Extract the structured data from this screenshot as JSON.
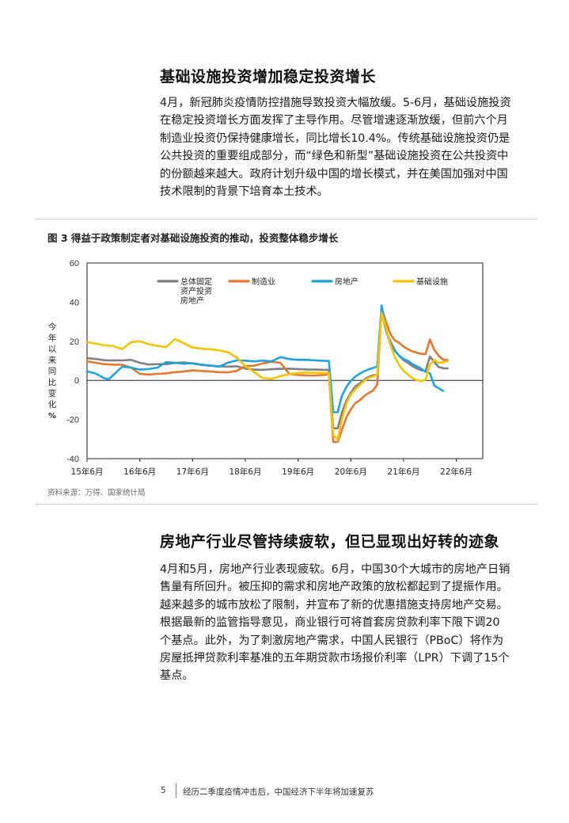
{
  "section1": {
    "heading": "基础设施投资增加稳定投资增长",
    "paragraph": [
      "4月，新冠肺炎疫情防控措施导致投资大幅放缓。5-6月，基础设施投资",
      "在稳定投资增长方面发挥了主导作用。尽管增速逐渐放缓，但前六个月",
      "制造业投资仍保持健康增长，同比增长10.4%。传统基础设施投资仍是",
      "公共投资的重要组成部分，而“绿色和新型”基础设施投资在公共投资中",
      "的份额越来越大。政府计划升级中国的增长模式，并在美国加强对中国",
      "技术限制的背景下培育本土技术。"
    ]
  },
  "figure": {
    "title": "图 3  得益于政策制定者对基础设施投资的推动，投资整体稳步增长",
    "source": "资料来源：万得、国家统计局"
  },
  "chart_data": {
    "type": "line",
    "ylabel": [
      "今",
      "年",
      "以",
      "来",
      "同",
      "比",
      "变",
      "化",
      "%"
    ],
    "ylim": [
      -40,
      60
    ],
    "yticks": [
      -40,
      -20,
      0,
      20,
      40,
      60
    ],
    "x_range": [
      0,
      90
    ],
    "xticks": [
      {
        "x": 0,
        "label": "15年6月"
      },
      {
        "x": 12,
        "label": "16年6月"
      },
      {
        "x": 24,
        "label": "17年6月"
      },
      {
        "x": 36,
        "label": "18年6月"
      },
      {
        "x": 48,
        "label": "19年6月"
      },
      {
        "x": 60,
        "label": "20年6月"
      },
      {
        "x": 72,
        "label": "21年6月"
      },
      {
        "x": 84,
        "label": "22年6月"
      }
    ],
    "legend_labels": [
      "总体固定\n资产投资\n房地产",
      "制造业",
      "房地产",
      "基础设施"
    ],
    "series": [
      {
        "name": "总体固定资产投资",
        "color": "#7f7f7f",
        "points": [
          [
            0,
            11.4
          ],
          [
            2,
            10.9
          ],
          [
            4,
            10.3
          ],
          [
            6,
            10.2
          ],
          [
            8,
            10.2
          ],
          [
            10,
            10.5
          ],
          [
            12,
            9.0
          ],
          [
            14,
            8.1
          ],
          [
            16,
            8.3
          ],
          [
            18,
            8.3
          ],
          [
            20,
            8.9
          ],
          [
            22,
            9.2
          ],
          [
            24,
            8.6
          ],
          [
            26,
            7.9
          ],
          [
            28,
            7.5
          ],
          [
            30,
            7.2
          ],
          [
            32,
            7.0
          ],
          [
            34,
            7.2
          ],
          [
            36,
            6.0
          ],
          [
            38,
            5.5
          ],
          [
            40,
            5.4
          ],
          [
            42,
            5.7
          ],
          [
            44,
            5.9
          ],
          [
            46,
            6.0
          ],
          [
            48,
            5.8
          ],
          [
            50,
            5.6
          ],
          [
            52,
            5.5
          ],
          [
            54,
            5.4
          ],
          [
            55,
            5.4
          ],
          [
            56,
            -24.5
          ],
          [
            57,
            -24.5
          ],
          [
            58,
            -16.1
          ],
          [
            59,
            -10.3
          ],
          [
            60,
            -6.3
          ],
          [
            61,
            -3.1
          ],
          [
            62,
            -1.6
          ],
          [
            63,
            0.3
          ],
          [
            64,
            1.8
          ],
          [
            65,
            2.6
          ],
          [
            66,
            2.9
          ],
          [
            67,
            35.0
          ],
          [
            68,
            25.6
          ],
          [
            69,
            19.9
          ],
          [
            70,
            15.4
          ],
          [
            71,
            12.6
          ],
          [
            72,
            10.3
          ],
          [
            73,
            8.9
          ],
          [
            74,
            7.3
          ],
          [
            75,
            6.1
          ],
          [
            76,
            5.2
          ],
          [
            77,
            4.9
          ],
          [
            78,
            12.2
          ],
          [
            79,
            9.3
          ],
          [
            80,
            6.8
          ],
          [
            81,
            6.2
          ],
          [
            82,
            6.1
          ]
        ]
      },
      {
        "name": "制造业",
        "color": "#e8772e",
        "points": [
          [
            0,
            9.7
          ],
          [
            2,
            9.0
          ],
          [
            4,
            8.3
          ],
          [
            6,
            8.0
          ],
          [
            8,
            8.0
          ],
          [
            10,
            6.5
          ],
          [
            12,
            3.3
          ],
          [
            14,
            3.0
          ],
          [
            16,
            3.3
          ],
          [
            18,
            3.6
          ],
          [
            20,
            4.2
          ],
          [
            22,
            4.5
          ],
          [
            24,
            5.1
          ],
          [
            26,
            4.8
          ],
          [
            28,
            4.5
          ],
          [
            30,
            4.2
          ],
          [
            32,
            4.1
          ],
          [
            34,
            4.8
          ],
          [
            36,
            7.3
          ],
          [
            38,
            7.5
          ],
          [
            40,
            8.7
          ],
          [
            42,
            9.5
          ],
          [
            44,
            9.0
          ],
          [
            46,
            3.3
          ],
          [
            48,
            2.7
          ],
          [
            50,
            2.5
          ],
          [
            52,
            2.5
          ],
          [
            54,
            2.8
          ],
          [
            55,
            3.1
          ],
          [
            56,
            -31.5
          ],
          [
            57,
            -31.5
          ],
          [
            58,
            -25.2
          ],
          [
            59,
            -18.8
          ],
          [
            60,
            -14.8
          ],
          [
            61,
            -11.7
          ],
          [
            62,
            -10.2
          ],
          [
            63,
            -8.1
          ],
          [
            64,
            -6.5
          ],
          [
            65,
            -5.3
          ],
          [
            66,
            -2.2
          ],
          [
            67,
            37.3
          ],
          [
            68,
            29.8
          ],
          [
            69,
            23.8
          ],
          [
            70,
            20.4
          ],
          [
            71,
            19.2
          ],
          [
            72,
            17.3
          ],
          [
            73,
            15.9
          ],
          [
            74,
            14.8
          ],
          [
            75,
            14.2
          ],
          [
            76,
            13.5
          ],
          [
            77,
            13.5
          ],
          [
            78,
            20.9
          ],
          [
            79,
            15.6
          ],
          [
            80,
            12.5
          ],
          [
            81,
            10.6
          ],
          [
            82,
            10.4
          ]
        ]
      },
      {
        "name": "房地产",
        "color": "#1fa3de",
        "points": [
          [
            0,
            4.6
          ],
          [
            2,
            3.5
          ],
          [
            4,
            1.0
          ],
          [
            5,
            0.6
          ],
          [
            6,
            2.8
          ],
          [
            8,
            7.0
          ],
          [
            10,
            6.5
          ],
          [
            12,
            5.5
          ],
          [
            14,
            5.8
          ],
          [
            16,
            6.5
          ],
          [
            18,
            9.3
          ],
          [
            20,
            9.0
          ],
          [
            22,
            8.5
          ],
          [
            24,
            8.8
          ],
          [
            26,
            8.0
          ],
          [
            28,
            7.6
          ],
          [
            30,
            7.0
          ],
          [
            32,
            9.0
          ],
          [
            34,
            10.2
          ],
          [
            36,
            10.1
          ],
          [
            38,
            9.7
          ],
          [
            40,
            10.1
          ],
          [
            42,
            9.7
          ],
          [
            44,
            11.9
          ],
          [
            46,
            10.9
          ],
          [
            48,
            10.5
          ],
          [
            50,
            10.5
          ],
          [
            52,
            10.2
          ],
          [
            54,
            10.0
          ],
          [
            55,
            9.9
          ],
          [
            56,
            -16.3
          ],
          [
            57,
            -16.3
          ],
          [
            58,
            -7.7
          ],
          [
            59,
            -3.3
          ],
          [
            60,
            -0.3
          ],
          [
            61,
            1.9
          ],
          [
            62,
            3.4
          ],
          [
            63,
            4.6
          ],
          [
            64,
            5.6
          ],
          [
            65,
            6.3
          ],
          [
            66,
            7.0
          ],
          [
            67,
            38.3
          ],
          [
            68,
            25.6
          ],
          [
            69,
            18.3
          ],
          [
            70,
            15.0
          ],
          [
            71,
            12.7
          ],
          [
            72,
            10.9
          ],
          [
            73,
            10.0
          ],
          [
            74,
            8.4
          ],
          [
            75,
            7.2
          ],
          [
            76,
            6.0
          ],
          [
            77,
            4.4
          ],
          [
            78,
            3.7
          ],
          [
            79,
            -2.7
          ],
          [
            80,
            -4.0
          ],
          [
            81,
            -5.4
          ]
        ]
      },
      {
        "name": "基础设施",
        "color": "#f5c400",
        "points": [
          [
            0,
            19.5
          ],
          [
            2,
            18.8
          ],
          [
            4,
            17.9
          ],
          [
            6,
            17.5
          ],
          [
            8,
            16.0
          ],
          [
            10,
            19.5
          ],
          [
            12,
            20.0
          ],
          [
            14,
            18.5
          ],
          [
            16,
            17.6
          ],
          [
            18,
            17.0
          ],
          [
            20,
            21.1
          ],
          [
            22,
            19.0
          ],
          [
            24,
            16.8
          ],
          [
            26,
            16.2
          ],
          [
            28,
            15.9
          ],
          [
            30,
            15.4
          ],
          [
            32,
            14.4
          ],
          [
            34,
            11.8
          ],
          [
            36,
            7.3
          ],
          [
            38,
            4.2
          ],
          [
            40,
            1.1
          ],
          [
            42,
            0.8
          ],
          [
            44,
            2.2
          ],
          [
            46,
            3.2
          ],
          [
            48,
            3.8
          ],
          [
            50,
            4.0
          ],
          [
            52,
            3.9
          ],
          [
            54,
            3.8
          ],
          [
            55,
            3.8
          ],
          [
            56,
            -28.0
          ],
          [
            57,
            -30.3
          ],
          [
            58,
            -19.7
          ],
          [
            59,
            -11.8
          ],
          [
            60,
            -7.2
          ],
          [
            61,
            -4.6
          ],
          [
            62,
            -2.6
          ],
          [
            63,
            -0.3
          ],
          [
            64,
            1.2
          ],
          [
            65,
            2.0
          ],
          [
            66,
            2.9
          ],
          [
            67,
            34.5
          ],
          [
            68,
            26.9
          ],
          [
            69,
            18.3
          ],
          [
            70,
            11.8
          ],
          [
            71,
            7.8
          ],
          [
            72,
            4.8
          ],
          [
            73,
            3.0
          ],
          [
            74,
            1.0
          ],
          [
            75,
            0.2
          ],
          [
            76,
            -0.4
          ],
          [
            77,
            0.4
          ],
          [
            78,
            8.1
          ],
          [
            79,
            10.5
          ],
          [
            80,
            8.9
          ],
          [
            81,
            9.3
          ],
          [
            82,
            9.8
          ]
        ]
      }
    ]
  },
  "section2": {
    "heading": "房地产行业尽管持续疲软，但已显现出好转的迹象",
    "paragraph": [
      "4月和5月，房地产行业表现疲软。6月，中国30个大城市的房地产日销",
      "售量有所回升。被压抑的需求和房地产政策的放松都起到了提振作用。",
      "越来越多的城市放松了限制，并宣布了新的优惠措施支持房地产交易。",
      "根据最新的监管指导意见，商业银行可将首套房贷款利率下限下调20",
      "个基点。此外，为了刺激房地产需求，中国人民银行（PBoC）将作为",
      "房屋抵押贷款利率基准的五年期贷款市场报价利率（LPR）下调了15个",
      "基点。"
    ]
  },
  "footer": {
    "page_number": "5",
    "text": "经历二季度疫情冲击后，中国经济下半年将加速复苏"
  }
}
